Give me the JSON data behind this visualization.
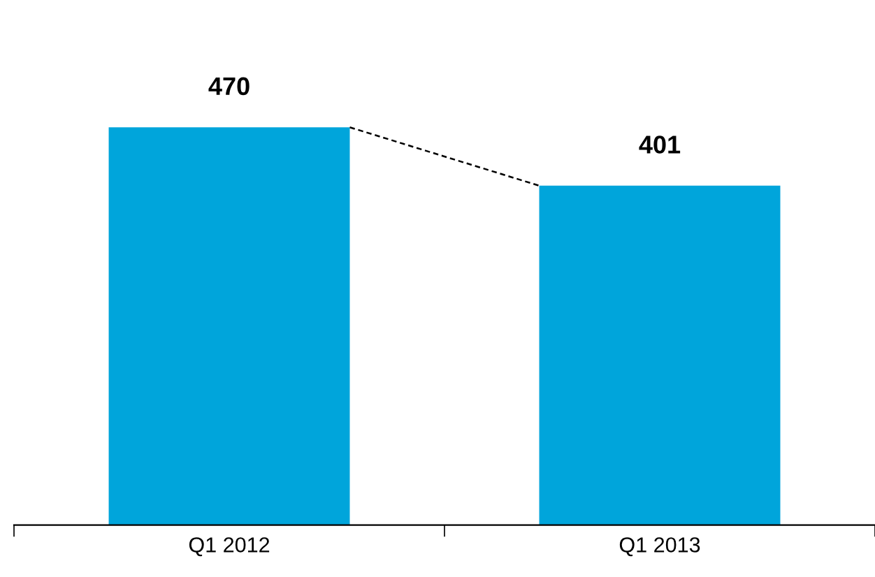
{
  "chart_data": {
    "type": "bar",
    "categories": [
      "Q1 2012",
      "Q1 2013"
    ],
    "values": [
      470,
      401
    ],
    "color": "#00a5db",
    "data_labels": true,
    "grid": false,
    "legend": false,
    "tick_labels": "x"
  }
}
